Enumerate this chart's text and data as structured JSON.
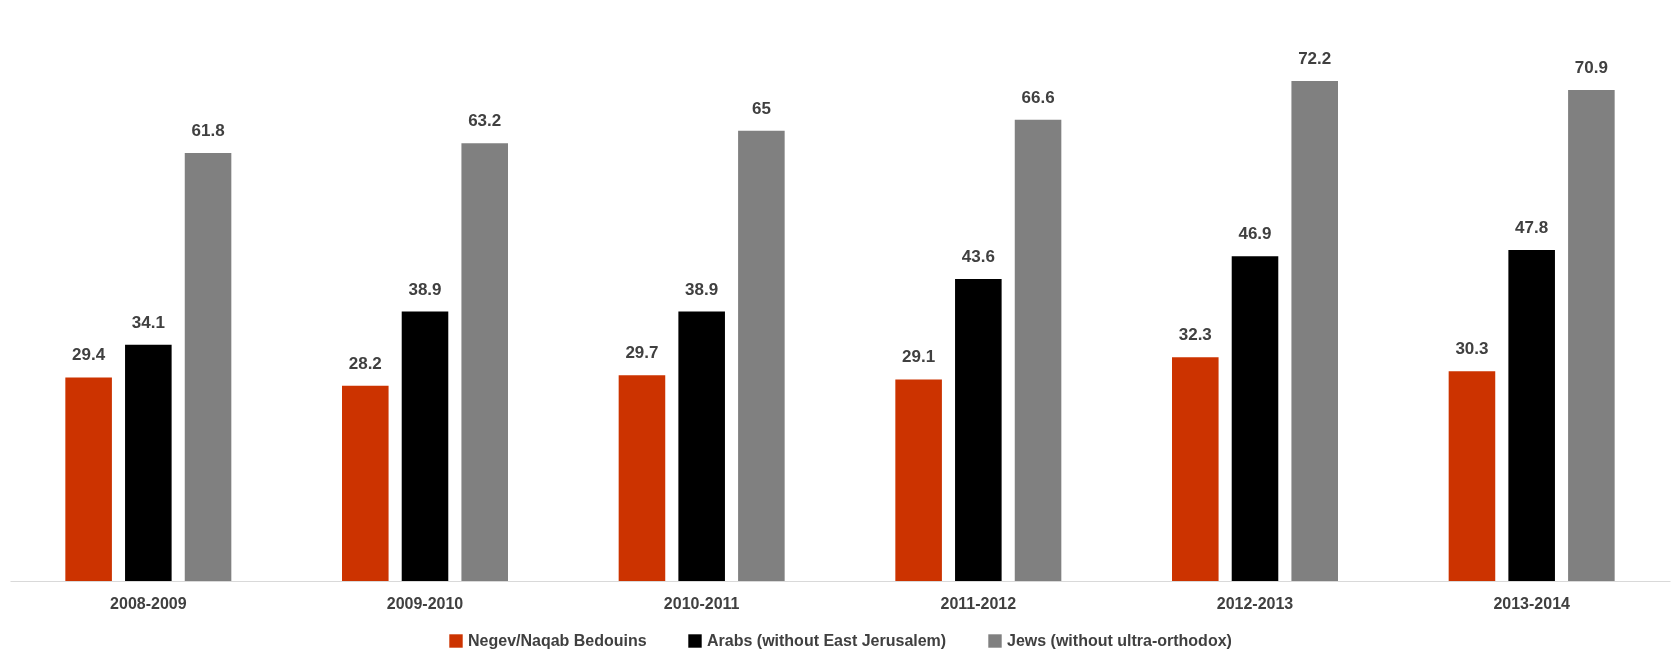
{
  "chart_data": {
    "type": "bar",
    "categories": [
      "2008-2009",
      "2009-2010",
      "2010-2011",
      "2011-2012",
      "2012-2013",
      "2013-2014"
    ],
    "series": [
      {
        "name": "Negev/Naqab Bedouins",
        "color": "#cc3300",
        "values": [
          29.4,
          28.2,
          29.7,
          29.1,
          32.3,
          30.3
        ]
      },
      {
        "name": "Arabs (without East Jerusalem)",
        "color": "#000000",
        "values": [
          34.1,
          38.9,
          38.9,
          43.6,
          46.9,
          47.8
        ]
      },
      {
        "name": "Jews (without ultra-orthodox)",
        "color": "#808080",
        "values": [
          61.8,
          63.2,
          65,
          66.6,
          72.2,
          70.9
        ]
      }
    ],
    "data_labels": true,
    "legend": "bottom",
    "grid": false
  }
}
